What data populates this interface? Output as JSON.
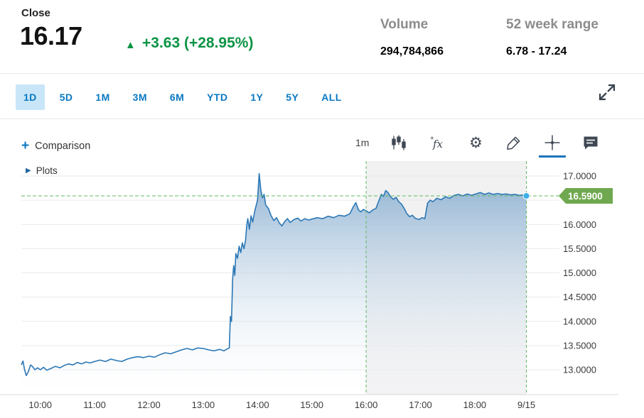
{
  "header": {
    "close_label": "Close",
    "price": "16.17",
    "up_arrow": "▲",
    "change": "+3.63 (+28.95%)",
    "volume_label": "Volume",
    "volume_value": "294,784,866",
    "range_label": "52 week range",
    "range_value": "6.78 - 17.24"
  },
  "tabs": {
    "items": [
      "1D",
      "5D",
      "1M",
      "3M",
      "6M",
      "YTD",
      "1Y",
      "5Y",
      "ALL"
    ],
    "active": "1D"
  },
  "toolbar": {
    "plus": "+",
    "comparison_label": "Comparison",
    "interval": "1m",
    "icons": [
      "candlestick-icon",
      "fx-indicator-icon",
      "settings-gear-icon",
      "draw-pencil-icon",
      "crosshair-icon",
      "annotation-icon",
      "fullscreen-icon"
    ],
    "active_tool": "crosshair"
  },
  "plots": {
    "toggle_arrow": "▶",
    "label": "Plots"
  },
  "colors": {
    "accent_blue": "#0a78c2",
    "tab_active_bg": "#c8e6f8",
    "green_change": "#0b9444",
    "line_blue": "#2b77b5",
    "area_top": "#84abcf",
    "band_gray": "#f1f1f2",
    "grid_gray": "#e9e9e9",
    "dashed_green": "#5fba5f",
    "badge_green": "#6fa84f",
    "marker_cyan": "#3db0e8",
    "axis_text": "#3a3a3a"
  },
  "chart_data": {
    "type": "area",
    "x_unit": "hour_of_day_decimal",
    "last_price": 16.59,
    "last_price_label": "16.5900",
    "x_domain": [
      9.65,
      19.56
    ],
    "y_domain": [
      12.48,
      17.28
    ],
    "grid": "horizontal",
    "legend": "none",
    "session_shading": {
      "from_hour": 16.0,
      "to_hour": 18.95
    },
    "x_ticks": [
      {
        "hour": 10,
        "label": "10:00"
      },
      {
        "hour": 11,
        "label": "11:00"
      },
      {
        "hour": 12,
        "label": "12:00"
      },
      {
        "hour": 13,
        "label": "13:00"
      },
      {
        "hour": 14,
        "label": "14:00"
      },
      {
        "hour": 15,
        "label": "15:00"
      },
      {
        "hour": 16,
        "label": "16:00"
      },
      {
        "hour": 17,
        "label": "17:00"
      },
      {
        "hour": 18,
        "label": "18:00"
      },
      {
        "hour": 18.95,
        "label": "9/15"
      }
    ],
    "y_ticks": [
      {
        "value": 17.0,
        "label": "17.0000"
      },
      {
        "value": 16.5,
        "label": ""
      },
      {
        "value": 16.0,
        "label": "16.0000"
      },
      {
        "value": 15.5,
        "label": "15.5000"
      },
      {
        "value": 15.0,
        "label": "15.0000"
      },
      {
        "value": 14.5,
        "label": "14.5000"
      },
      {
        "value": 14.0,
        "label": "14.0000"
      },
      {
        "value": 13.5,
        "label": "13.5000"
      },
      {
        "value": 13.0,
        "label": "13.0000"
      }
    ],
    "points": [
      [
        9.65,
        13.1
      ],
      [
        9.68,
        13.18
      ],
      [
        9.71,
        13.0
      ],
      [
        9.74,
        12.88
      ],
      [
        9.78,
        12.96
      ],
      [
        9.82,
        13.1
      ],
      [
        9.86,
        13.06
      ],
      [
        9.9,
        13.0
      ],
      [
        9.95,
        13.04
      ],
      [
        10.0,
        13.0
      ],
      [
        10.06,
        13.05
      ],
      [
        10.12,
        12.99
      ],
      [
        10.2,
        13.03
      ],
      [
        10.28,
        13.07
      ],
      [
        10.36,
        13.04
      ],
      [
        10.44,
        13.09
      ],
      [
        10.52,
        13.12
      ],
      [
        10.6,
        13.1
      ],
      [
        10.68,
        13.15
      ],
      [
        10.76,
        13.12
      ],
      [
        10.84,
        13.16
      ],
      [
        10.92,
        13.14
      ],
      [
        11.0,
        13.17
      ],
      [
        11.1,
        13.2
      ],
      [
        11.2,
        13.17
      ],
      [
        11.3,
        13.22
      ],
      [
        11.4,
        13.19
      ],
      [
        11.5,
        13.17
      ],
      [
        11.6,
        13.22
      ],
      [
        11.7,
        13.25
      ],
      [
        11.8,
        13.27
      ],
      [
        11.9,
        13.25
      ],
      [
        12.0,
        13.28
      ],
      [
        12.1,
        13.26
      ],
      [
        12.2,
        13.31
      ],
      [
        12.3,
        13.35
      ],
      [
        12.4,
        13.33
      ],
      [
        12.5,
        13.37
      ],
      [
        12.6,
        13.41
      ],
      [
        12.7,
        13.44
      ],
      [
        12.8,
        13.41
      ],
      [
        12.9,
        13.45
      ],
      [
        13.0,
        13.44
      ],
      [
        13.1,
        13.41
      ],
      [
        13.2,
        13.39
      ],
      [
        13.3,
        13.42
      ],
      [
        13.38,
        13.39
      ],
      [
        13.44,
        13.43
      ],
      [
        13.48,
        13.45
      ],
      [
        13.5,
        14.1
      ],
      [
        13.52,
        14.0
      ],
      [
        13.54,
        14.85
      ],
      [
        13.56,
        15.15
      ],
      [
        13.58,
        14.95
      ],
      [
        13.6,
        15.4
      ],
      [
        13.63,
        15.3
      ],
      [
        13.66,
        15.55
      ],
      [
        13.69,
        15.42
      ],
      [
        13.72,
        15.62
      ],
      [
        13.75,
        15.5
      ],
      [
        13.78,
        15.68
      ],
      [
        13.8,
        15.98
      ],
      [
        13.82,
        16.12
      ],
      [
        13.85,
        15.9
      ],
      [
        13.88,
        16.18
      ],
      [
        13.91,
        16.05
      ],
      [
        13.95,
        16.28
      ],
      [
        14.0,
        16.5
      ],
      [
        14.03,
        17.05
      ],
      [
        14.06,
        16.72
      ],
      [
        14.09,
        16.55
      ],
      [
        14.12,
        16.62
      ],
      [
        14.15,
        16.4
      ],
      [
        14.2,
        16.33
      ],
      [
        14.25,
        16.18
      ],
      [
        14.3,
        16.08
      ],
      [
        14.35,
        16.14
      ],
      [
        14.4,
        16.03
      ],
      [
        14.45,
        15.97
      ],
      [
        14.5,
        16.06
      ],
      [
        14.55,
        16.12
      ],
      [
        14.6,
        16.04
      ],
      [
        14.67,
        16.1
      ],
      [
        14.74,
        16.13
      ],
      [
        14.8,
        16.07
      ],
      [
        14.87,
        16.12
      ],
      [
        14.94,
        16.09
      ],
      [
        15.0,
        16.11
      ],
      [
        15.1,
        16.14
      ],
      [
        15.2,
        16.12
      ],
      [
        15.3,
        16.17
      ],
      [
        15.4,
        16.14
      ],
      [
        15.5,
        16.19
      ],
      [
        15.6,
        16.17
      ],
      [
        15.7,
        16.22
      ],
      [
        15.76,
        16.36
      ],
      [
        15.81,
        16.45
      ],
      [
        15.86,
        16.3
      ],
      [
        15.9,
        16.26
      ],
      [
        15.95,
        16.31
      ],
      [
        16.0,
        16.28
      ],
      [
        16.06,
        16.24
      ],
      [
        16.12,
        16.3
      ],
      [
        16.18,
        16.33
      ],
      [
        16.23,
        16.48
      ],
      [
        16.28,
        16.62
      ],
      [
        16.32,
        16.58
      ],
      [
        16.36,
        16.7
      ],
      [
        16.4,
        16.66
      ],
      [
        16.45,
        16.57
      ],
      [
        16.5,
        16.52
      ],
      [
        16.55,
        16.56
      ],
      [
        16.6,
        16.47
      ],
      [
        16.65,
        16.42
      ],
      [
        16.7,
        16.33
      ],
      [
        16.75,
        16.22
      ],
      [
        16.8,
        16.16
      ],
      [
        16.85,
        16.19
      ],
      [
        16.9,
        16.13
      ],
      [
        16.97,
        16.1
      ],
      [
        17.03,
        16.14
      ],
      [
        17.08,
        16.12
      ],
      [
        17.13,
        16.44
      ],
      [
        17.18,
        16.5
      ],
      [
        17.23,
        16.47
      ],
      [
        17.3,
        16.54
      ],
      [
        17.38,
        16.51
      ],
      [
        17.46,
        16.57
      ],
      [
        17.54,
        16.54
      ],
      [
        17.62,
        16.6
      ],
      [
        17.7,
        16.62
      ],
      [
        17.78,
        16.59
      ],
      [
        17.86,
        16.63
      ],
      [
        17.94,
        16.6
      ],
      [
        18.02,
        16.63
      ],
      [
        18.1,
        16.66
      ],
      [
        18.18,
        16.62
      ],
      [
        18.26,
        16.65
      ],
      [
        18.34,
        16.62
      ],
      [
        18.42,
        16.64
      ],
      [
        18.5,
        16.62
      ],
      [
        18.58,
        16.63
      ],
      [
        18.66,
        16.61
      ],
      [
        18.74,
        16.62
      ],
      [
        18.82,
        16.6
      ],
      [
        18.9,
        16.61
      ],
      [
        18.95,
        16.59
      ]
    ]
  }
}
